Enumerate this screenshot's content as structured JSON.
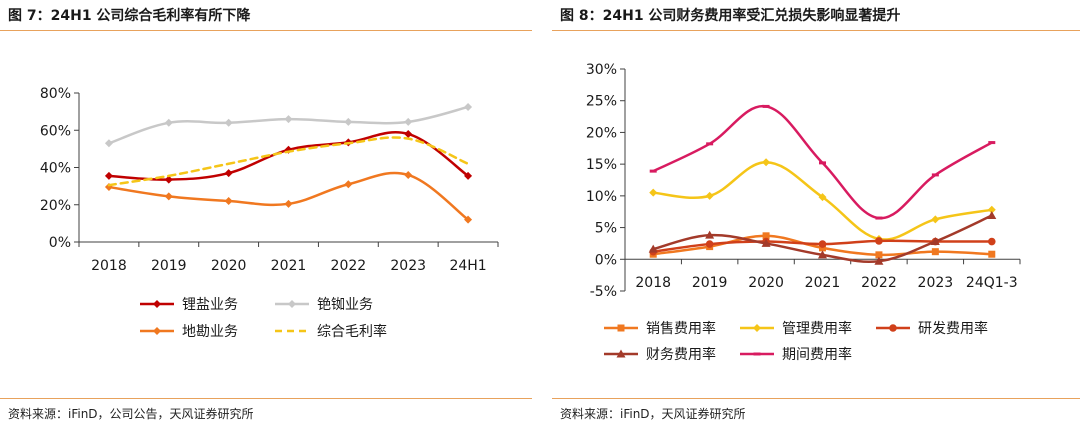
{
  "charts": [
    {
      "figure_title": "图 7：24H1 公司综合毛利率有所下降",
      "source": "资料来源：iFinD，公司公告，天风证券研究所"
    },
    {
      "figure_title": "图 8：24H1 公司财务费用率受汇兑损失影响显著提升",
      "source": "资料来源：iFinD，天风证券研究所"
    }
  ],
  "chart_data": [
    {
      "type": "line",
      "title": "图 7：24H1 公司综合毛利率有所下降",
      "categories": [
        "2018",
        "2019",
        "2020",
        "2021",
        "2022",
        "2023",
        "24H1"
      ],
      "ylim": [
        0,
        80
      ],
      "yticks": [
        "0%",
        "20%",
        "40%",
        "60%",
        "80%"
      ],
      "ytick_values": [
        0,
        20,
        40,
        60,
        80
      ],
      "unit": "%",
      "grid": false,
      "legend_position": "bottom",
      "series": [
        {
          "name": "锂盐业务",
          "color": "#c00000",
          "marker": "diamond",
          "dash": false,
          "values": [
            35.5,
            33.5,
            37,
            49.5,
            53.5,
            58,
            35.5
          ]
        },
        {
          "name": "铯铷业务",
          "color": "#c8c8c8",
          "marker": "diamond",
          "dash": false,
          "values": [
            53,
            64,
            64,
            66,
            64.5,
            64.5,
            72.5
          ]
        },
        {
          "name": "地勘业务",
          "color": "#f07820",
          "marker": "diamond",
          "dash": false,
          "values": [
            29.5,
            24.5,
            22,
            20.5,
            31,
            36,
            12
          ]
        },
        {
          "name": "综合毛利率",
          "color": "#f5c518",
          "marker": "none",
          "dash": true,
          "values": [
            30.5,
            35.5,
            42,
            48.5,
            53,
            55.5,
            42
          ]
        }
      ]
    },
    {
      "type": "line",
      "title": "图 8：24H1 公司财务费用率受汇兑损失影响显著提升",
      "categories": [
        "2018",
        "2019",
        "2020",
        "2021",
        "2022",
        "2023",
        "24Q1-3"
      ],
      "ylim": [
        -5,
        30
      ],
      "yticks": [
        "-5%",
        "0%",
        "5%",
        "10%",
        "15%",
        "20%",
        "25%",
        "30%"
      ],
      "ytick_values": [
        -5,
        0,
        5,
        10,
        15,
        20,
        25,
        30
      ],
      "unit": "%",
      "grid": false,
      "legend_position": "bottom",
      "series": [
        {
          "name": "销售费用率",
          "color": "#f07820",
          "marker": "square",
          "dash": false,
          "values": [
            0.8,
            2,
            3.7,
            1.8,
            0.7,
            1.2,
            0.8
          ]
        },
        {
          "name": "管理费用率",
          "color": "#f5c518",
          "marker": "diamond",
          "dash": false,
          "values": [
            10.5,
            10,
            15.3,
            9.8,
            3.2,
            6.3,
            7.8
          ]
        },
        {
          "name": "研发费用率",
          "color": "#d0401a",
          "marker": "circle",
          "dash": false,
          "values": [
            1.2,
            2.4,
            2.8,
            2.4,
            2.9,
            2.8,
            2.8
          ]
        },
        {
          "name": "财务费用率",
          "color": "#a33a2a",
          "marker": "triangle",
          "dash": false,
          "values": [
            1.6,
            3.8,
            2.5,
            0.7,
            -0.3,
            2.8,
            6.9
          ]
        },
        {
          "name": "期间费用率",
          "color": "#d81b60",
          "marker": "dash",
          "dash": false,
          "values": [
            13.9,
            18.2,
            24.1,
            15.2,
            6.5,
            13.3,
            18.4
          ]
        }
      ]
    }
  ]
}
